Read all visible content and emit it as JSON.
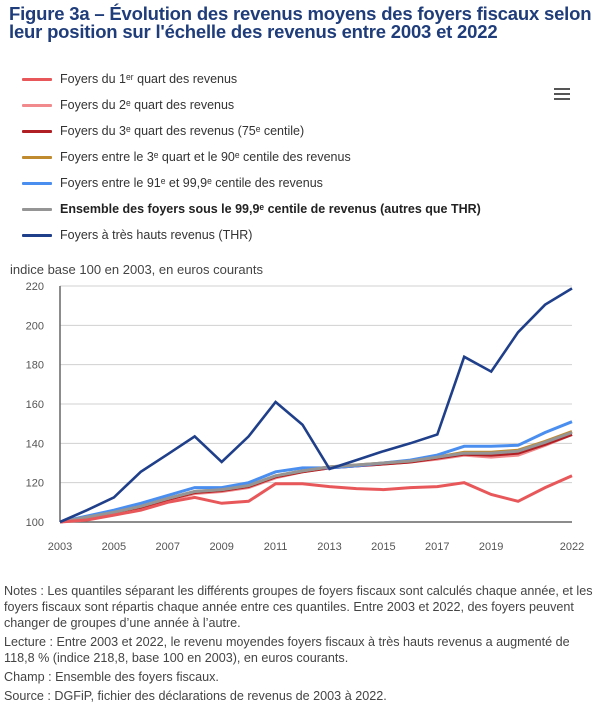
{
  "title": "Figure 3a – Évolution des revenus moyens des foyers fiscaux selon leur position sur l'échelle des revenus entre 2003 et 2022",
  "menu": {
    "icon": "hamburger-menu-icon"
  },
  "unit_label": "indice base 100 en 2003, en euros courants",
  "legend": [
    {
      "label": "Foyers du 1ᵉʳ quart des revenus",
      "color": "#e8585a",
      "bold": false
    },
    {
      "label": "Foyers du 2ᵉ quart des revenus",
      "color": "#f08a8c",
      "bold": false
    },
    {
      "label": "Foyers du 3ᵉ quart des revenus (75ᵉ centile)",
      "color": "#b01f24",
      "bold": false
    },
    {
      "label": "Foyers entre le 3ᵉ quart et le 90ᵉ centile des revenus",
      "color": "#c08a2e",
      "bold": false
    },
    {
      "label": "Foyers entre le 91ᵉ et 99,9ᵉ centile des revenus",
      "color": "#4a8ef0",
      "bold": false
    },
    {
      "label": "Ensemble des foyers sous le 99,9ᵉ centile de revenus (autres que THR)",
      "color": "#959595",
      "bold": true
    },
    {
      "label": "Foyers à très hauts revenus (THR)",
      "color": "#1f3f8a",
      "bold": false
    }
  ],
  "chart_data": {
    "type": "line",
    "title": "Figure 3a – Évolution des revenus moyens des foyers fiscaux selon leur position sur l'échelle des revenus entre 2003 et 2022",
    "xlabel": "",
    "ylabel": "indice base 100 en 2003, en euros courants",
    "x": [
      2003,
      2004,
      2005,
      2006,
      2007,
      2008,
      2009,
      2010,
      2011,
      2012,
      2013,
      2014,
      2015,
      2016,
      2017,
      2018,
      2019,
      2020,
      2021,
      2022
    ],
    "x_ticks": [
      "2003",
      "2005",
      "2007",
      "2009",
      "2011",
      "2013",
      "2015",
      "2017",
      "2019",
      "2022"
    ],
    "y_ticks": [
      100,
      120,
      140,
      160,
      180,
      200,
      220
    ],
    "ylim": [
      100,
      220
    ],
    "xlim": [
      2003,
      2022
    ],
    "grid": true,
    "legend_position": "top",
    "series": [
      {
        "name": "Foyers du 2ᵉ quart des revenus",
        "color": "#f08a8c",
        "values": [
          100,
          102,
          104.5,
          107,
          111,
          114.5,
          115.5,
          117.5,
          122.5,
          125.5,
          127.5,
          128.5,
          129.5,
          130.5,
          132,
          134,
          133,
          134,
          139,
          144.5
        ]
      },
      {
        "name": "Foyers du 3ᵉ quart des revenus (75ᵉ centile)",
        "color": "#b01f24",
        "values": [
          100,
          102.5,
          105,
          107.5,
          111.5,
          115,
          116,
          118,
          123,
          125.5,
          127.5,
          128.5,
          129.5,
          130.5,
          132.5,
          134.5,
          134,
          135,
          139.5,
          144.5
        ]
      },
      {
        "name": "Foyers entre le 3ᵉ quart et le 90ᵉ centile des revenus",
        "color": "#c08a2e",
        "values": [
          100,
          102.5,
          105,
          108,
          112,
          115.5,
          116.5,
          118.5,
          123.5,
          126,
          128,
          129,
          130,
          131,
          133,
          135.5,
          135.5,
          136.5,
          141,
          146
        ]
      },
      {
        "name": "Foyers entre le 91ᵉ et 99,9ᵉ centile des revenus",
        "color": "#4a8ef0",
        "values": [
          100,
          103,
          106,
          109.5,
          113.5,
          117.5,
          117.5,
          120,
          125.5,
          127.5,
          127.5,
          128.5,
          130,
          131.5,
          134,
          138.5,
          138.5,
          139,
          145.5,
          151
        ]
      },
      {
        "name": "Ensemble des foyers sous le 99,9ᵉ centile de revenus (autres que THR)",
        "color": "#959595",
        "values": [
          100,
          102.5,
          105,
          108,
          112,
          115.5,
          116.5,
          118.5,
          123.5,
          126,
          128,
          129,
          130,
          131,
          133,
          135,
          135,
          136,
          140.5,
          145.5
        ]
      },
      {
        "name": "Foyers du 1ᵉʳ quart des revenus",
        "color": "#e8585a",
        "values": [
          100,
          101,
          103.5,
          106,
          110,
          112.5,
          109.5,
          110.5,
          119.5,
          119.5,
          118,
          117,
          116.5,
          117.5,
          118,
          120,
          114,
          110.5,
          117.5,
          123.5
        ]
      },
      {
        "name": "Foyers à très hauts revenus (THR)",
        "color": "#1f3f8a",
        "values": [
          100,
          106,
          112.5,
          125.5,
          134.5,
          143.5,
          130.5,
          143.5,
          161,
          149.5,
          127,
          131.5,
          136,
          140,
          144.5,
          184,
          176.5,
          196.5,
          210.5,
          218.8
        ]
      }
    ]
  },
  "notes": [
    "Notes : Les quantiles séparant les différents groupes de foyers fiscaux sont calculés chaque année, et les foyers fiscaux sont répartis chaque année entre ces quantiles. Entre 2003 et 2022, des foyers peuvent changer de groupes d’une année à l’autre.",
    "Lecture : Entre 2003 et 2022, le revenu moyendes foyers fiscaux à très hauts revenus a augmenté de 118,8 % (indice 218,8, base 100 en 2003), en euros courants.",
    "Champ : Ensemble des foyers fiscaux.",
    "Source : DGFiP, fichier des déclarations de revenus de 2003 à 2022."
  ]
}
